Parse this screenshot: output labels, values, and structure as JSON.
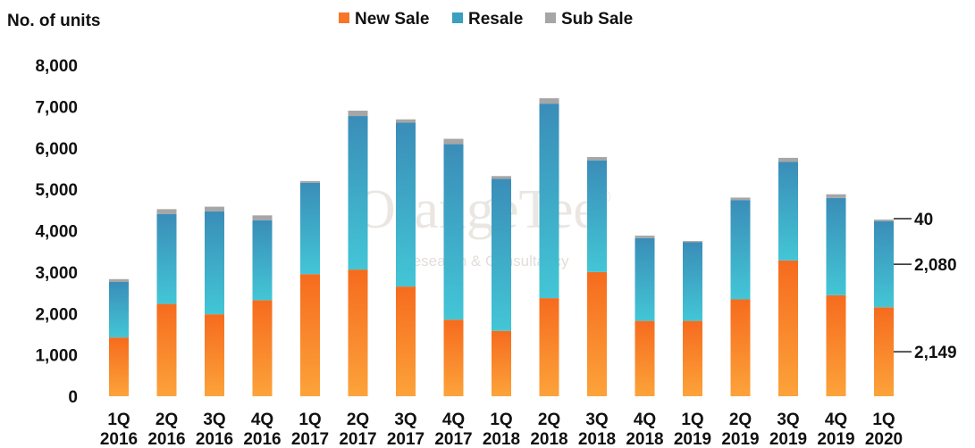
{
  "chart_data": {
    "type": "bar",
    "stacked": true,
    "ylabel": "No. of units",
    "ylim": [
      0,
      8000
    ],
    "yticks": [
      "0",
      "1,000",
      "2,000",
      "3,000",
      "4,000",
      "5,000",
      "6,000",
      "7,000",
      "8,000"
    ],
    "grid": false,
    "legend_position": "top",
    "categories": [
      [
        "1Q",
        "2016"
      ],
      [
        "2Q",
        "2016"
      ],
      [
        "3Q",
        "2016"
      ],
      [
        "4Q",
        "2016"
      ],
      [
        "1Q",
        "2017"
      ],
      [
        "2Q",
        "2017"
      ],
      [
        "3Q",
        "2017"
      ],
      [
        "4Q",
        "2017"
      ],
      [
        "1Q",
        "2018"
      ],
      [
        "2Q",
        "2018"
      ],
      [
        "3Q",
        "2018"
      ],
      [
        "4Q",
        "2018"
      ],
      [
        "1Q",
        "2019"
      ],
      [
        "2Q",
        "2019"
      ],
      [
        "3Q",
        "2019"
      ],
      [
        "4Q",
        "2019"
      ],
      [
        "1Q",
        "2020"
      ]
    ],
    "series": [
      {
        "name": "New Sale",
        "color": "#f7762a",
        "values": [
          1420,
          2230,
          1980,
          2320,
          2950,
          3060,
          2650,
          1850,
          1580,
          2370,
          3000,
          1820,
          1820,
          2340,
          3280,
          2440,
          2149
        ]
      },
      {
        "name": "Resale",
        "color": "#3b9fc0",
        "values": [
          1340,
          2170,
          2490,
          1930,
          2210,
          3710,
          3960,
          4240,
          3670,
          4700,
          2700,
          2000,
          1900,
          2400,
          2380,
          2350,
          2080
        ]
      },
      {
        "name": "Sub Sale",
        "color": "#a6a6a6",
        "values": [
          70,
          120,
          110,
          120,
          40,
          130,
          80,
          130,
          70,
          130,
          80,
          60,
          30,
          60,
          100,
          90,
          40
        ]
      }
    ],
    "annotations": [
      {
        "label": "40",
        "series": "Sub Sale",
        "category_index": 16
      },
      {
        "label": "2,080",
        "series": "Resale",
        "category_index": 16
      },
      {
        "label": "2,149",
        "series": "New Sale",
        "category_index": 16
      }
    ],
    "watermark": {
      "line1": "OrangeTee",
      "mark": "®",
      "line2": "Research & Consultancy"
    }
  }
}
